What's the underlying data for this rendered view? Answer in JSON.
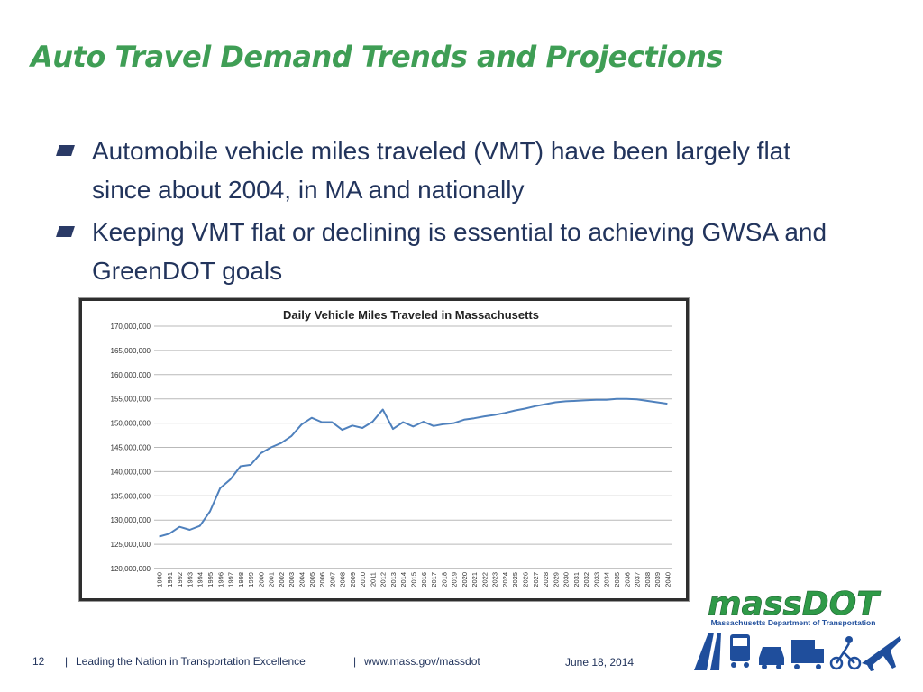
{
  "slide": {
    "title": "Auto Travel Demand Trends and Projections",
    "bullets": [
      "Automobile vehicle miles traveled (VMT) have been largely flat since about 2004, in MA and nationally",
      "Keeping VMT flat or declining is essential to achieving GWSA and GreenDOT goals"
    ]
  },
  "footer": {
    "page_number": "12",
    "separator": "|",
    "tagline": "Leading the Nation in Transportation Excellence",
    "website": "www.mass.gov/massdot",
    "date": "June 18, 2014"
  },
  "logo": {
    "name": "massDOT",
    "subtitle": "Massachusetts Department of Transportation",
    "colors": {
      "green": "#2f9a48",
      "blue": "#1f4e9c"
    }
  },
  "chart_data": {
    "type": "line",
    "title": "Daily Vehicle Miles Traveled in Massachusetts",
    "xlabel": "",
    "ylabel": "",
    "ylim": [
      120000000,
      170000000
    ],
    "yticks": [
      120000000,
      125000000,
      130000000,
      135000000,
      140000000,
      145000000,
      150000000,
      155000000,
      160000000,
      165000000,
      170000000
    ],
    "ytick_labels": [
      "120,000,000",
      "125,000,000",
      "130,000,000",
      "135,000,000",
      "140,000,000",
      "145,000,000",
      "150,000,000",
      "155,000,000",
      "160,000,000",
      "165,000,000",
      "170,000,000"
    ],
    "grid": true,
    "legend": "none",
    "line_color": "#4f81bd",
    "x": [
      1990,
      1991,
      1992,
      1993,
      1994,
      1995,
      1996,
      1997,
      1998,
      1999,
      2000,
      2001,
      2002,
      2003,
      2004,
      2005,
      2006,
      2007,
      2008,
      2009,
      2010,
      2011,
      2012,
      2013,
      2014,
      2015,
      2016,
      2017,
      2018,
      2019,
      2020,
      2021,
      2022,
      2023,
      2024,
      2025,
      2026,
      2027,
      2028,
      2029,
      2030,
      2031,
      2032,
      2033,
      2034,
      2035,
      2036,
      2037,
      2038,
      2039,
      2040
    ],
    "series": [
      {
        "values": [
          126600000,
          127200000,
          128600000,
          128000000,
          128800000,
          131800000,
          136600000,
          138400000,
          141100000,
          141400000,
          143800000,
          145000000,
          145900000,
          147300000,
          149700000,
          151100000,
          150200000,
          150200000,
          148600000,
          149500000,
          149000000,
          150300000,
          152800000,
          148800000,
          150200000,
          149300000,
          150300000,
          149400000,
          149800000,
          150000000,
          150700000,
          151000000,
          151400000,
          151700000,
          152100000,
          152600000,
          153000000,
          153500000,
          153900000,
          154300000,
          154500000,
          154600000,
          154700000,
          154800000,
          154800000,
          155000000,
          155000000,
          154900000,
          154600000,
          154300000,
          154000000
        ]
      }
    ]
  }
}
